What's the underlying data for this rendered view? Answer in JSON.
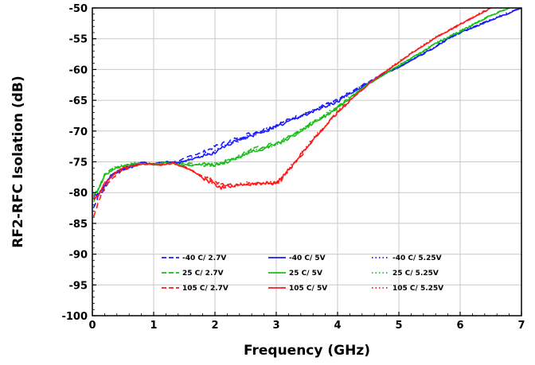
{
  "chart_data": {
    "type": "line",
    "xlabel": "Frequency (GHz)",
    "ylabel": "RF2-RFC Isolation (dB)",
    "xlim": [
      0,
      7
    ],
    "ylim": [
      -100,
      -50
    ],
    "xticks": [
      0,
      1,
      2,
      3,
      4,
      5,
      6,
      7
    ],
    "yticks": [
      -50,
      -55,
      -60,
      -65,
      -70,
      -75,
      -80,
      -85,
      -90,
      -95,
      -100
    ],
    "grid": true,
    "legend_position": "bottom-inside",
    "series": [
      {
        "name": "-40 C/ 2.7V",
        "color": "#1a1aff",
        "style": "dashed",
        "points": [
          [
            0.02,
            -82.5
          ],
          [
            0.1,
            -80.5
          ],
          [
            0.2,
            -79.5
          ],
          [
            0.3,
            -77.5
          ],
          [
            0.45,
            -76.5
          ],
          [
            0.6,
            -76
          ],
          [
            0.8,
            -75.3
          ],
          [
            1.0,
            -75.3
          ],
          [
            1.2,
            -75
          ],
          [
            1.4,
            -75
          ],
          [
            1.6,
            -74
          ],
          [
            1.8,
            -73.5
          ],
          [
            2.0,
            -72.5
          ],
          [
            2.2,
            -71.8
          ],
          [
            2.4,
            -71
          ],
          [
            2.6,
            -70.3
          ],
          [
            2.8,
            -69.8
          ],
          [
            3.0,
            -69
          ],
          [
            3.2,
            -68.2
          ],
          [
            3.4,
            -67.4
          ],
          [
            3.6,
            -66.6
          ],
          [
            3.8,
            -65.8
          ],
          [
            4.0,
            -65
          ],
          [
            4.2,
            -63.8
          ],
          [
            4.5,
            -62
          ],
          [
            4.8,
            -60.5
          ],
          [
            5.0,
            -59.6
          ],
          [
            5.3,
            -58
          ],
          [
            5.6,
            -56.3
          ],
          [
            5.8,
            -55
          ],
          [
            6.0,
            -54
          ],
          [
            6.3,
            -52.8
          ],
          [
            6.6,
            -51.6
          ],
          [
            7.0,
            -50
          ]
        ]
      },
      {
        "name": "25 C/ 2.7V",
        "color": "#16c016",
        "style": "dashed",
        "points": [
          [
            0.02,
            -81.5
          ],
          [
            0.1,
            -79.5
          ],
          [
            0.2,
            -77
          ],
          [
            0.35,
            -76
          ],
          [
            0.5,
            -75.8
          ],
          [
            0.7,
            -75.2
          ],
          [
            1.0,
            -75.4
          ],
          [
            1.2,
            -75
          ],
          [
            1.4,
            -75.2
          ],
          [
            1.6,
            -75.3
          ],
          [
            1.8,
            -75.5
          ],
          [
            2.0,
            -75.5
          ],
          [
            2.2,
            -74.8
          ],
          [
            2.4,
            -74
          ],
          [
            2.6,
            -73
          ],
          [
            2.8,
            -72.5
          ],
          [
            3.0,
            -72
          ],
          [
            3.2,
            -71
          ],
          [
            3.4,
            -69.8
          ],
          [
            3.6,
            -68.5
          ],
          [
            3.8,
            -67.4
          ],
          [
            4.0,
            -66.2
          ],
          [
            4.2,
            -64.6
          ],
          [
            4.5,
            -62.4
          ],
          [
            4.8,
            -60.6
          ],
          [
            5.0,
            -59.4
          ],
          [
            5.3,
            -57.6
          ],
          [
            5.6,
            -55.8
          ],
          [
            5.9,
            -54.3
          ],
          [
            6.2,
            -52.8
          ],
          [
            6.5,
            -51.2
          ],
          [
            6.8,
            -50
          ]
        ]
      },
      {
        "name": "105 C/ 2.7V",
        "color": "#ff1a1a",
        "style": "dashed",
        "points": [
          [
            0.02,
            -84
          ],
          [
            0.1,
            -81.5
          ],
          [
            0.2,
            -79
          ],
          [
            0.35,
            -77.5
          ],
          [
            0.5,
            -76.3
          ],
          [
            0.7,
            -75.6
          ],
          [
            0.9,
            -75.2
          ],
          [
            1.1,
            -75.6
          ],
          [
            1.3,
            -75
          ],
          [
            1.5,
            -75.8
          ],
          [
            1.7,
            -76.8
          ],
          [
            1.9,
            -77.8
          ],
          [
            2.1,
            -78.5
          ],
          [
            2.3,
            -78.8
          ],
          [
            2.5,
            -78.5
          ],
          [
            2.7,
            -78.5
          ],
          [
            2.9,
            -78.4
          ],
          [
            3.0,
            -78.5
          ],
          [
            3.1,
            -77.8
          ],
          [
            3.2,
            -76.5
          ],
          [
            3.4,
            -74
          ],
          [
            3.6,
            -71.5
          ],
          [
            3.8,
            -69.2
          ],
          [
            4.0,
            -67
          ],
          [
            4.2,
            -65
          ],
          [
            4.5,
            -62.4
          ],
          [
            4.8,
            -60.2
          ],
          [
            5.0,
            -58.8
          ],
          [
            5.3,
            -56.8
          ],
          [
            5.6,
            -54.8
          ],
          [
            5.9,
            -53.2
          ],
          [
            6.2,
            -51.6
          ],
          [
            6.5,
            -50
          ]
        ]
      },
      {
        "name": "-40 C/ 5V",
        "color": "#1a1aff",
        "style": "solid",
        "points": [
          [
            0.02,
            -80.5
          ],
          [
            0.1,
            -80.2
          ],
          [
            0.2,
            -79
          ],
          [
            0.3,
            -77.2
          ],
          [
            0.45,
            -76.3
          ],
          [
            0.6,
            -75.8
          ],
          [
            0.8,
            -75.1
          ],
          [
            1.0,
            -75.4
          ],
          [
            1.2,
            -75
          ],
          [
            1.4,
            -75.2
          ],
          [
            1.6,
            -74.6
          ],
          [
            1.8,
            -74.1
          ],
          [
            2.0,
            -73.5
          ],
          [
            2.2,
            -72.2
          ],
          [
            2.4,
            -71.5
          ],
          [
            2.6,
            -70.8
          ],
          [
            2.8,
            -70
          ],
          [
            3.0,
            -69.4
          ],
          [
            3.2,
            -68.4
          ],
          [
            3.4,
            -67.6
          ],
          [
            3.6,
            -66.8
          ],
          [
            3.8,
            -66
          ],
          [
            4.0,
            -65.2
          ],
          [
            4.2,
            -64
          ],
          [
            4.5,
            -62.2
          ],
          [
            4.8,
            -60.6
          ],
          [
            5.0,
            -59.6
          ],
          [
            5.3,
            -58
          ],
          [
            5.6,
            -56.3
          ],
          [
            5.8,
            -55
          ],
          [
            6.0,
            -54
          ],
          [
            6.3,
            -52.8
          ],
          [
            6.6,
            -51.6
          ],
          [
            7.0,
            -50
          ]
        ]
      },
      {
        "name": "25 C/ 5V",
        "color": "#16c016",
        "style": "solid",
        "points": [
          [
            0.02,
            -80.5
          ],
          [
            0.1,
            -79.5
          ],
          [
            0.2,
            -77.3
          ],
          [
            0.35,
            -76.1
          ],
          [
            0.5,
            -75.6
          ],
          [
            0.7,
            -75.3
          ],
          [
            1.0,
            -75.4
          ],
          [
            1.2,
            -75.1
          ],
          [
            1.4,
            -75.4
          ],
          [
            1.6,
            -75.6
          ],
          [
            1.8,
            -75.4
          ],
          [
            2.0,
            -75.5
          ],
          [
            2.2,
            -75
          ],
          [
            2.4,
            -74.2
          ],
          [
            2.6,
            -73.4
          ],
          [
            2.8,
            -72.8
          ],
          [
            3.0,
            -72.2
          ],
          [
            3.2,
            -71.2
          ],
          [
            3.4,
            -70
          ],
          [
            3.6,
            -68.7
          ],
          [
            3.8,
            -67.5
          ],
          [
            4.0,
            -66.2
          ],
          [
            4.2,
            -64.6
          ],
          [
            4.5,
            -62.4
          ],
          [
            4.8,
            -60.6
          ],
          [
            5.0,
            -59.4
          ],
          [
            5.3,
            -57.6
          ],
          [
            5.6,
            -55.8
          ],
          [
            5.9,
            -54.3
          ],
          [
            6.2,
            -52.8
          ],
          [
            6.5,
            -51.2
          ],
          [
            6.8,
            -50
          ]
        ]
      },
      {
        "name": "105 C/ 5V",
        "color": "#ff1a1a",
        "style": "solid",
        "points": [
          [
            0.02,
            -81
          ],
          [
            0.1,
            -80.5
          ],
          [
            0.2,
            -78.5
          ],
          [
            0.35,
            -77
          ],
          [
            0.5,
            -76
          ],
          [
            0.7,
            -75.5
          ],
          [
            0.9,
            -75.3
          ],
          [
            1.1,
            -75.5
          ],
          [
            1.3,
            -75.2
          ],
          [
            1.5,
            -75.8
          ],
          [
            1.7,
            -77
          ],
          [
            1.9,
            -78.2
          ],
          [
            2.1,
            -79.2
          ],
          [
            2.3,
            -78.9
          ],
          [
            2.5,
            -78.6
          ],
          [
            2.7,
            -78.6
          ],
          [
            2.9,
            -78.5
          ],
          [
            3.0,
            -78.5
          ],
          [
            3.1,
            -77.6
          ],
          [
            3.2,
            -76.2
          ],
          [
            3.4,
            -73.8
          ],
          [
            3.6,
            -71.4
          ],
          [
            3.8,
            -69.2
          ],
          [
            4.0,
            -67
          ],
          [
            4.2,
            -65
          ],
          [
            4.5,
            -62.4
          ],
          [
            4.8,
            -60.2
          ],
          [
            5.0,
            -58.8
          ],
          [
            5.3,
            -56.8
          ],
          [
            5.6,
            -54.8
          ],
          [
            5.9,
            -53.2
          ],
          [
            6.2,
            -51.6
          ],
          [
            6.5,
            -50
          ]
        ]
      },
      {
        "name": "-40 C/ 5.25V",
        "color": "#1a1aff",
        "style": "dotted",
        "points": [
          [
            0.02,
            -80.8
          ],
          [
            0.1,
            -80.3
          ],
          [
            0.2,
            -79.1
          ],
          [
            0.3,
            -77.3
          ],
          [
            0.45,
            -76.4
          ],
          [
            0.6,
            -75.9
          ],
          [
            0.8,
            -75.2
          ],
          [
            1.0,
            -75.4
          ],
          [
            1.2,
            -75
          ],
          [
            1.4,
            -75.1
          ],
          [
            1.6,
            -74.5
          ],
          [
            1.8,
            -74
          ],
          [
            2.0,
            -73.4
          ],
          [
            2.2,
            -72.1
          ],
          [
            2.4,
            -71.4
          ],
          [
            2.6,
            -70.7
          ],
          [
            2.8,
            -69.9
          ],
          [
            3.0,
            -69.3
          ],
          [
            3.2,
            -68.3
          ],
          [
            3.4,
            -67.5
          ],
          [
            3.6,
            -66.7
          ],
          [
            3.8,
            -65.9
          ],
          [
            4.0,
            -65.1
          ],
          [
            4.2,
            -63.9
          ],
          [
            4.5,
            -62.1
          ],
          [
            4.8,
            -60.5
          ],
          [
            5.0,
            -59.5
          ],
          [
            5.3,
            -57.9
          ],
          [
            5.6,
            -56.2
          ],
          [
            5.8,
            -54.9
          ],
          [
            6.0,
            -53.9
          ],
          [
            6.3,
            -52.7
          ],
          [
            6.6,
            -51.5
          ],
          [
            7.0,
            -50
          ]
        ]
      },
      {
        "name": "25 C/ 5.25V",
        "color": "#16c016",
        "style": "dotted",
        "points": [
          [
            0.02,
            -80.2
          ],
          [
            0.1,
            -79.3
          ],
          [
            0.2,
            -77.1
          ],
          [
            0.35,
            -76
          ],
          [
            0.5,
            -75.5
          ],
          [
            0.7,
            -75.2
          ],
          [
            1.0,
            -75.3
          ],
          [
            1.2,
            -75
          ],
          [
            1.4,
            -75.3
          ],
          [
            1.6,
            -75.5
          ],
          [
            1.8,
            -75.3
          ],
          [
            2.0,
            -75.4
          ],
          [
            2.2,
            -74.9
          ],
          [
            2.4,
            -74.1
          ],
          [
            2.6,
            -73.3
          ],
          [
            2.8,
            -72.7
          ],
          [
            3.0,
            -72.1
          ],
          [
            3.2,
            -71.1
          ],
          [
            3.4,
            -69.9
          ],
          [
            3.6,
            -68.6
          ],
          [
            3.8,
            -67.4
          ],
          [
            4.0,
            -66.1
          ],
          [
            4.2,
            -64.5
          ],
          [
            4.5,
            -62.3
          ],
          [
            4.8,
            -60.5
          ],
          [
            5.0,
            -59.3
          ],
          [
            5.3,
            -57.5
          ],
          [
            5.6,
            -55.7
          ],
          [
            5.9,
            -54.2
          ],
          [
            6.2,
            -52.7
          ],
          [
            6.5,
            -51.1
          ],
          [
            6.8,
            -50
          ]
        ]
      },
      {
        "name": "105 C/ 5.25V",
        "color": "#ff1a1a",
        "style": "dotted",
        "points": [
          [
            0.02,
            -80.8
          ],
          [
            0.1,
            -80.4
          ],
          [
            0.2,
            -78.4
          ],
          [
            0.35,
            -76.9
          ],
          [
            0.5,
            -75.9
          ],
          [
            0.7,
            -75.4
          ],
          [
            0.9,
            -75.2
          ],
          [
            1.1,
            -75.4
          ],
          [
            1.3,
            -75.1
          ],
          [
            1.5,
            -75.7
          ],
          [
            1.7,
            -76.9
          ],
          [
            1.9,
            -78.1
          ],
          [
            2.1,
            -79.1
          ],
          [
            2.3,
            -78.8
          ],
          [
            2.5,
            -78.5
          ],
          [
            2.7,
            -78.5
          ],
          [
            2.9,
            -78.4
          ],
          [
            3.0,
            -78.4
          ],
          [
            3.1,
            -77.5
          ],
          [
            3.2,
            -76.1
          ],
          [
            3.4,
            -73.7
          ],
          [
            3.6,
            -71.3
          ],
          [
            3.8,
            -69.1
          ],
          [
            4.0,
            -66.9
          ],
          [
            4.2,
            -64.9
          ],
          [
            4.5,
            -62.3
          ],
          [
            4.8,
            -60.1
          ],
          [
            5.0,
            -58.7
          ],
          [
            5.3,
            -56.7
          ],
          [
            5.6,
            -54.7
          ],
          [
            5.9,
            -53.1
          ],
          [
            6.2,
            -51.5
          ],
          [
            6.5,
            -50
          ]
        ]
      }
    ]
  }
}
